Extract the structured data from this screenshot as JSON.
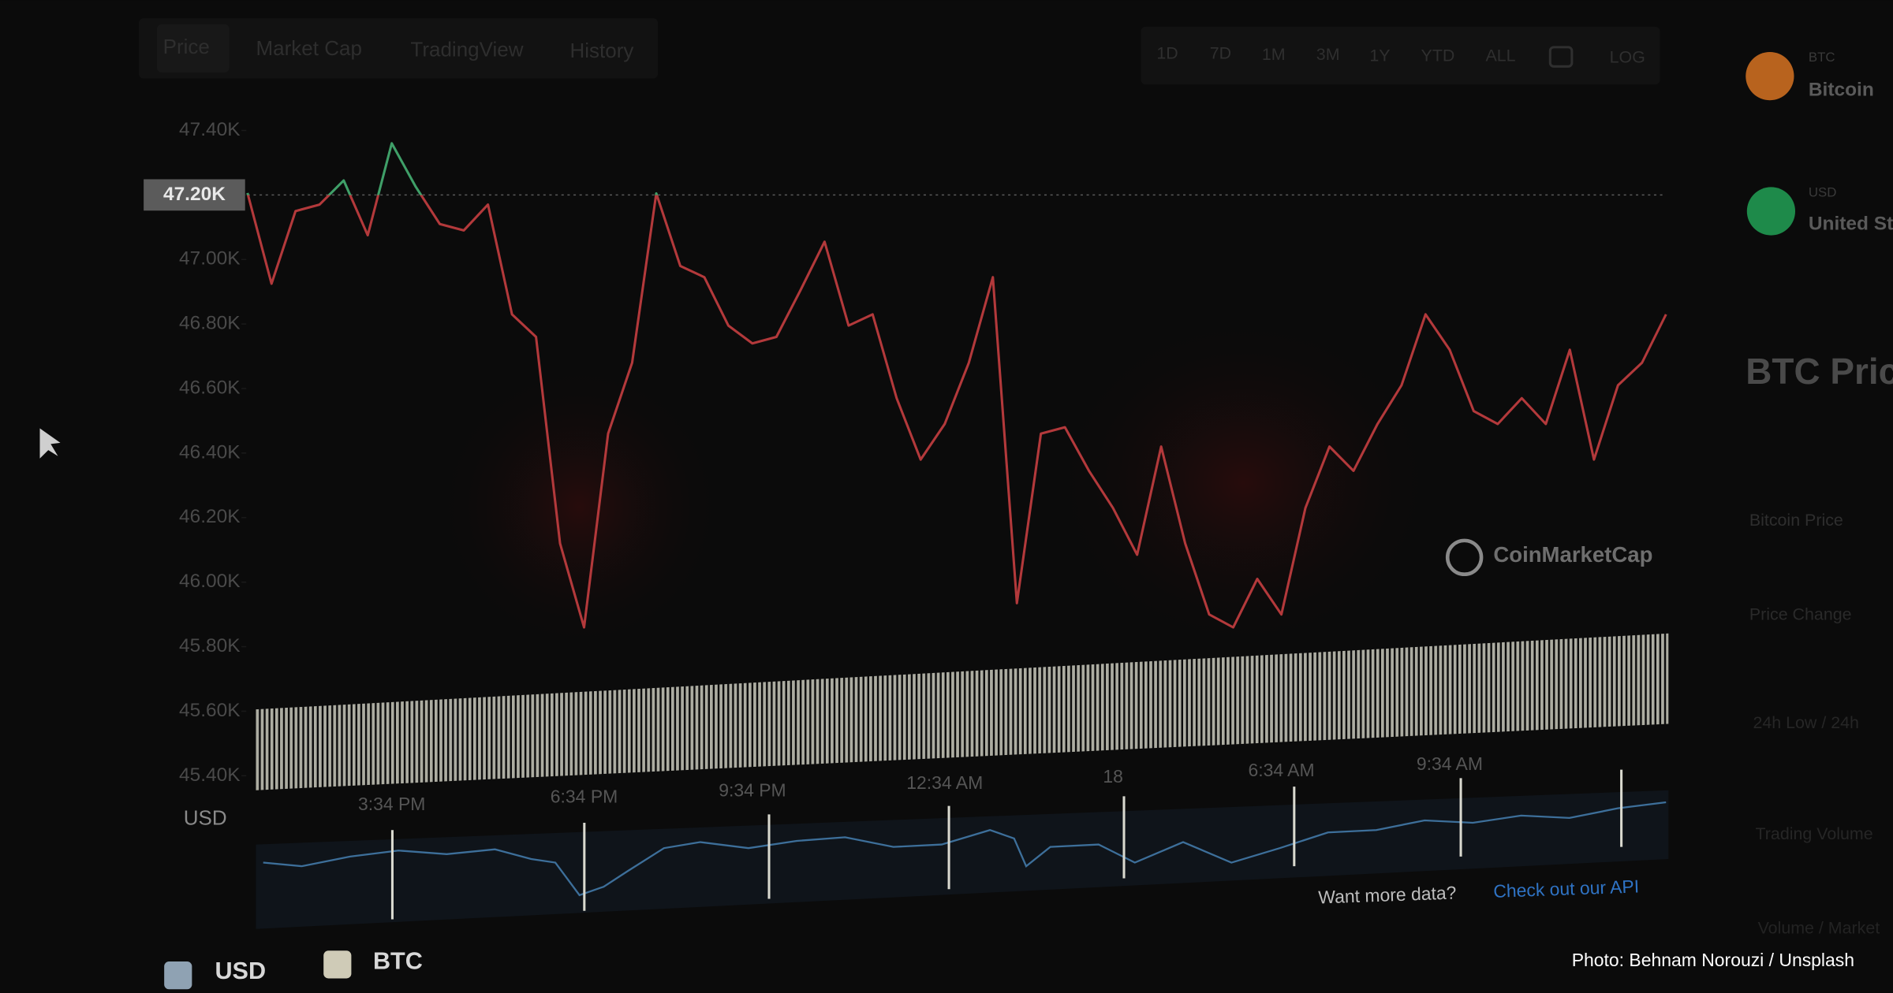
{
  "chart_data": {
    "type": "line",
    "categories": [
      null,
      null,
      null,
      null,
      null,
      null,
      "3:34 PM",
      null,
      null,
      null,
      null,
      null,
      null,
      null,
      "6:34 PM",
      null,
      null,
      null,
      null,
      null,
      null,
      "9:34 PM",
      null,
      null,
      null,
      null,
      null,
      null,
      null,
      "12:34 AM",
      null,
      null,
      null,
      null,
      null,
      null,
      "18",
      null,
      null,
      null,
      null,
      null,
      null,
      "6:34 AM",
      null,
      null,
      null,
      null,
      null,
      null,
      "9:34 AM",
      null,
      null,
      null,
      null,
      null,
      null,
      null,
      null,
      null
    ],
    "values": [
      47206,
      46925,
      47150,
      47170,
      47245,
      47075,
      47360,
      47225,
      47110,
      47090,
      47170,
      46830,
      46760,
      46120,
      45860,
      46460,
      46680,
      47205,
      46980,
      46945,
      46795,
      46740,
      46760,
      46905,
      47055,
      46795,
      46830,
      46570,
      46380,
      46490,
      46680,
      46945,
      45935,
      46460,
      46480,
      46345,
      46230,
      46085,
      46420,
      46120,
      45900,
      45860,
      46010,
      45900,
      46230,
      46420,
      46345,
      46490,
      46610,
      46830,
      46720,
      46530,
      46490,
      46570,
      46490,
      46720,
      46380,
      46610,
      46680,
      46830
    ],
    "color": "#b3393b",
    "up_color": "#3f9f68",
    "ylim": [
      45400,
      47500
    ],
    "yticks": [
      {
        "value": 45400,
        "label": "45.40K"
      },
      {
        "value": 45600,
        "label": "45.60K"
      },
      {
        "value": 45800,
        "label": "45.80K"
      },
      {
        "value": 46000,
        "label": "46.00K"
      },
      {
        "value": 46200,
        "label": "46.20K"
      },
      {
        "value": 46400,
        "label": "46.40K"
      },
      {
        "value": 46600,
        "label": "46.60K"
      },
      {
        "value": 46800,
        "label": "46.80K"
      },
      {
        "value": 47000,
        "label": "47.00K"
      },
      {
        "value": 47200,
        "label": "47.20K"
      },
      {
        "value": 47400,
        "label": "47.40K"
      }
    ],
    "marker": {
      "value": 47200,
      "label": "47.20K"
    },
    "y_unit": "USD",
    "watermark": "CoinMarketCap"
  },
  "ui": {
    "tabs": [
      "Price",
      "Market Cap",
      "TradingView",
      "History"
    ],
    "ranges": [
      "1D",
      "7D",
      "1M",
      "3M",
      "1Y",
      "YTD",
      "ALL",
      "LOG"
    ],
    "legend": [
      "USD",
      "BTC"
    ],
    "api_prompt": "Want more data?",
    "api_link": "Check out our API",
    "credit": "Photo: Behnam Norouzi / Unsplash",
    "sidebar": {
      "coin1_code": "BTC",
      "coin1_name": "Bitcoin",
      "coin2_code": "USD",
      "coin2_name": "United St",
      "heading": "BTC Pric",
      "rows": [
        "Bitcoin Price",
        "Price Change",
        "24h Low / 24h",
        "Trading Volume",
        "Volume / Market"
      ]
    }
  }
}
